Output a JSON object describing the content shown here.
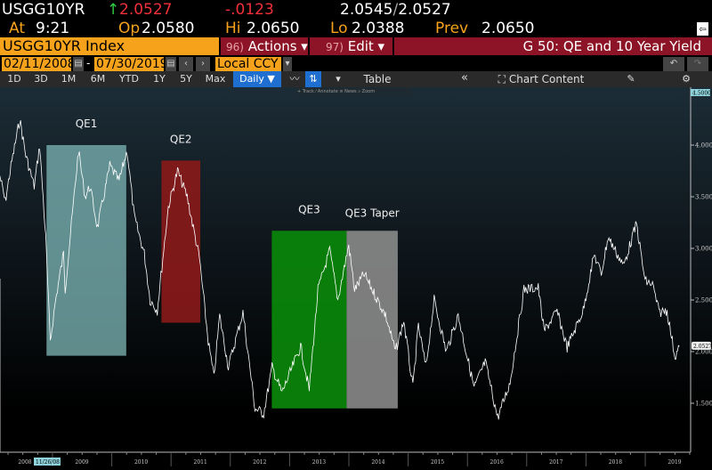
{
  "quote": {
    "ticker": "USGG10YR",
    "arrow": "↑",
    "last": "2.0527",
    "change": "-.0123",
    "bid": "2.0545",
    "ask": "2.0527",
    "sep": "/",
    "at_label": "At",
    "time": "9:21",
    "op_label": "Op",
    "open": "2.0580",
    "hi_label": "Hi",
    "high": "2.0650",
    "lo_label": "Lo",
    "low": "2.0388",
    "prev_label": "Prev",
    "prev": "2.0650"
  },
  "menu": {
    "security": "USGG10YR Index",
    "actions_num": "96)",
    "actions": "Actions ▾",
    "edit_num": "97)",
    "edit": "Edit ▾",
    "title": "G 50: QE and 10 Year Yield"
  },
  "range": {
    "start": "02/11/2008",
    "dash": "-",
    "end": "07/30/2019",
    "currency": "Local CCY"
  },
  "toolbar": {
    "periods": [
      "1D",
      "3D",
      "1M",
      "6M",
      "YTD",
      "1Y",
      "5Y",
      "Max"
    ],
    "frequency": "Daily ▼",
    "table": "Table",
    "collapse": "«",
    "chart_content": "Chart Content",
    "mini": [
      "+ Track",
      "⁄ Annotate",
      "≡ News",
      "⌕ Zoom"
    ]
  },
  "colors": {
    "orange": "#f7a21b",
    "red_bar": "#8c1426",
    "qe1": "#7fb8b8",
    "qe2": "#8b1a1a",
    "qe3": "#0a8a0a",
    "taper": "#8a8a8a"
  },
  "chart_data": {
    "type": "line",
    "ylim": [
      1.2,
      4.7
    ],
    "xlim": [
      "2008-02-11",
      "2019-07-30"
    ],
    "grid": false,
    "y_ticks": [
      "1.5000",
      "2.0000",
      "2.5000",
      "3.0000",
      "3.5000",
      "4.0000"
    ],
    "y_top_label": "4.5000",
    "last_label": "2.0527",
    "x_ticks": [
      "2008",
      "2009",
      "2010",
      "2011",
      "2012",
      "2013",
      "2014",
      "2015",
      "2016",
      "2017",
      "2018",
      "2019"
    ],
    "x_highlight": "11/26/08",
    "series": [
      {
        "values": [
          [
            "2008-02-11",
            3.7
          ],
          [
            "2008-03-15",
            3.45
          ],
          [
            "2008-04-20",
            3.8
          ],
          [
            "2008-06-13",
            4.25
          ],
          [
            "2008-07-20",
            3.9
          ],
          [
            "2008-09-10",
            3.6
          ],
          [
            "2008-10-14",
            4.0
          ],
          [
            "2008-11-20",
            3.1
          ],
          [
            "2008-12-18",
            2.1
          ],
          [
            "2009-01-20",
            2.5
          ],
          [
            "2009-03-10",
            2.95
          ],
          [
            "2009-03-20",
            2.6
          ],
          [
            "2009-06-10",
            3.95
          ],
          [
            "2009-07-20",
            3.5
          ],
          [
            "2009-08-20",
            3.6
          ],
          [
            "2009-10-05",
            3.2
          ],
          [
            "2009-12-20",
            3.8
          ],
          [
            "2010-02-15",
            3.65
          ],
          [
            "2010-04-05",
            3.95
          ],
          [
            "2010-05-20",
            3.3
          ],
          [
            "2010-07-20",
            2.95
          ],
          [
            "2010-08-25",
            2.5
          ],
          [
            "2010-10-08",
            2.4
          ],
          [
            "2010-12-15",
            3.4
          ],
          [
            "2011-02-10",
            3.75
          ],
          [
            "2011-04-10",
            3.5
          ],
          [
            "2011-06-25",
            2.9
          ],
          [
            "2011-08-18",
            2.1
          ],
          [
            "2011-09-22",
            1.75
          ],
          [
            "2011-10-27",
            2.35
          ],
          [
            "2011-12-20",
            1.85
          ],
          [
            "2012-03-19",
            2.38
          ],
          [
            "2012-06-01",
            1.45
          ],
          [
            "2012-07-25",
            1.4
          ],
          [
            "2012-09-15",
            1.85
          ],
          [
            "2012-11-15",
            1.6
          ],
          [
            "2013-03-10",
            2.05
          ],
          [
            "2013-05-02",
            1.63
          ],
          [
            "2013-06-25",
            2.6
          ],
          [
            "2013-09-05",
            2.98
          ],
          [
            "2013-10-25",
            2.5
          ],
          [
            "2013-12-31",
            3.03
          ],
          [
            "2014-02-05",
            2.6
          ],
          [
            "2014-04-05",
            2.75
          ],
          [
            "2014-08-15",
            2.35
          ],
          [
            "2014-10-15",
            2.0
          ],
          [
            "2014-12-05",
            2.3
          ],
          [
            "2015-01-30",
            1.65
          ],
          [
            "2015-03-05",
            2.25
          ],
          [
            "2015-04-20",
            1.85
          ],
          [
            "2015-06-10",
            2.5
          ],
          [
            "2015-08-24",
            2.0
          ],
          [
            "2015-11-05",
            2.35
          ],
          [
            "2016-02-11",
            1.65
          ],
          [
            "2016-04-20",
            1.9
          ],
          [
            "2016-07-06",
            1.36
          ],
          [
            "2016-09-20",
            1.7
          ],
          [
            "2016-12-15",
            2.6
          ],
          [
            "2017-03-13",
            2.62
          ],
          [
            "2017-04-18",
            2.2
          ],
          [
            "2017-07-07",
            2.39
          ],
          [
            "2017-09-07",
            2.04
          ],
          [
            "2017-12-15",
            2.4
          ],
          [
            "2018-02-21",
            2.94
          ],
          [
            "2018-04-05",
            2.75
          ],
          [
            "2018-05-17",
            3.11
          ],
          [
            "2018-08-20",
            2.83
          ],
          [
            "2018-11-08",
            3.24
          ],
          [
            "2018-12-31",
            2.68
          ],
          [
            "2019-02-15",
            2.65
          ],
          [
            "2019-03-27",
            2.38
          ],
          [
            "2019-05-15",
            2.4
          ],
          [
            "2019-07-03",
            1.95
          ],
          [
            "2019-07-30",
            2.05
          ]
        ]
      }
    ],
    "annotations": [
      {
        "label": "QE1",
        "x": [
          "2008-11-25",
          "2010-03-31"
        ],
        "y": [
          1.96,
          4.0
        ],
        "color": "#7fb8b8"
      },
      {
        "label": "QE2",
        "x": [
          "2010-11-03",
          "2011-06-30"
        ],
        "y": [
          2.28,
          3.85
        ],
        "color": "#8b1a1a"
      },
      {
        "label": "QE3",
        "x": [
          "2012-09-13",
          "2013-12-18"
        ],
        "y": [
          1.45,
          3.17
        ],
        "color": "#0a8a0a"
      },
      {
        "label": "QE3 Taper",
        "x": [
          "2013-12-18",
          "2014-10-29"
        ],
        "y": [
          1.45,
          3.17
        ],
        "color": "#8a8a8a"
      }
    ]
  }
}
